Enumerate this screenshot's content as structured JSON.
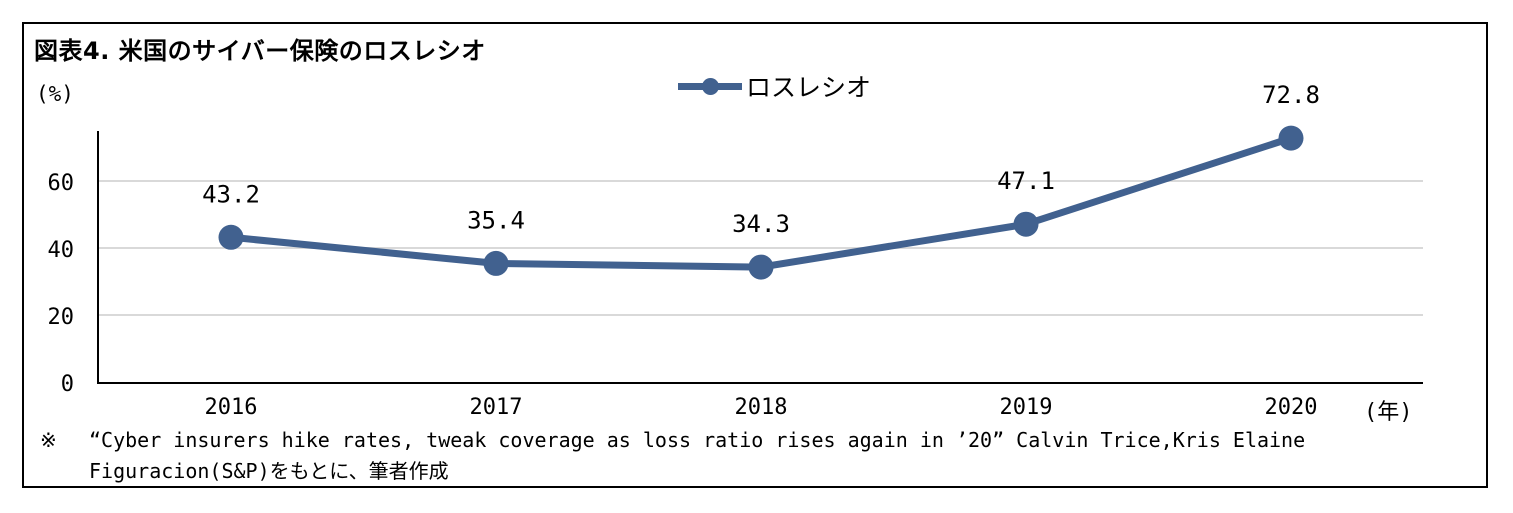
{
  "chart_data": {
    "type": "line",
    "title": "図表4.  米国のサイバー保険のロスレシオ",
    "y_unit_label": "(%)",
    "x_unit_label": "(年)",
    "categories": [
      "2016",
      "2017",
      "2018",
      "2019",
      "2020"
    ],
    "series": [
      {
        "name": "ロスレシオ",
        "values": [
          43.2,
          35.4,
          34.3,
          47.1,
          72.8
        ],
        "data_labels": [
          "43.2",
          "35.4",
          "34.3",
          "47.1",
          "72.8"
        ],
        "color": "#41618f"
      }
    ],
    "y_ticks": [
      "0",
      "20",
      "40",
      "60"
    ],
    "ylim": [
      0,
      75
    ],
    "grid": true,
    "legend_position": "top-center"
  },
  "note": {
    "mark": "※",
    "line1": "“Cyber insurers hike rates, tweak coverage as loss ratio rises again in ’20”  Calvin Trice,Kris Elaine",
    "line2": "Figuracion(S&P)をもとに、筆者作成"
  }
}
